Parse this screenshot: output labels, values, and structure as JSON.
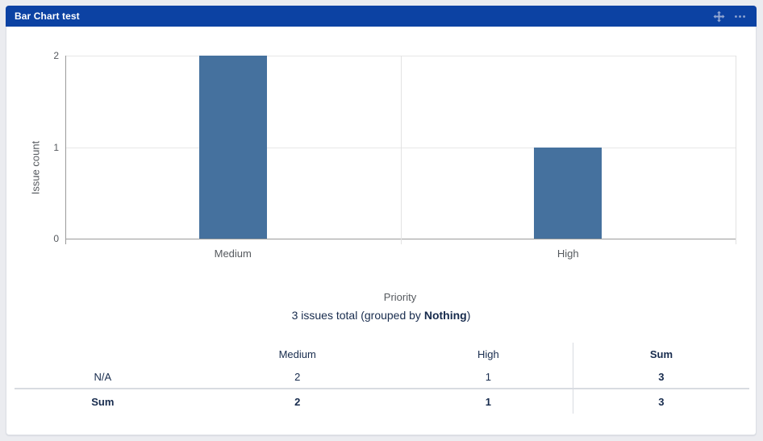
{
  "header": {
    "title": "Bar Chart test",
    "icons": [
      {
        "name": "move-icon"
      },
      {
        "name": "more-options-icon"
      }
    ]
  },
  "chart_data": {
    "type": "bar",
    "categories": [
      "Medium",
      "High"
    ],
    "values": [
      2,
      1
    ],
    "title": "",
    "xlabel": "Priority",
    "ylabel": "Issue count",
    "ylim": [
      0,
      2
    ],
    "yticks": [
      0,
      1,
      2
    ],
    "legend": false,
    "grid": true
  },
  "summary": {
    "prefix": "3 issues total (grouped by ",
    "group_by": "Nothing",
    "suffix": ")"
  },
  "table": {
    "columns": [
      "",
      "Medium",
      "High",
      "Sum"
    ],
    "col_widths": [
      "24%",
      "29%",
      "23%",
      "24%"
    ],
    "rows": [
      {
        "label": "N/A",
        "values": [
          "2",
          "1",
          "3"
        ],
        "bold": false
      },
      {
        "label": "Sum",
        "values": [
          "2",
          "1",
          "3"
        ],
        "bold": true
      }
    ]
  },
  "colors": {
    "header_bg": "#0c42a3",
    "header_icon": "#93a7d2",
    "bar": "#45719e",
    "axis_text": "#55595e",
    "grid_line": "#e7e7e7",
    "axis_line": "#9b9b9b",
    "dark_text": "#172b4d",
    "page_bg": "#ebecf0",
    "card_bg": "#ffffff"
  }
}
